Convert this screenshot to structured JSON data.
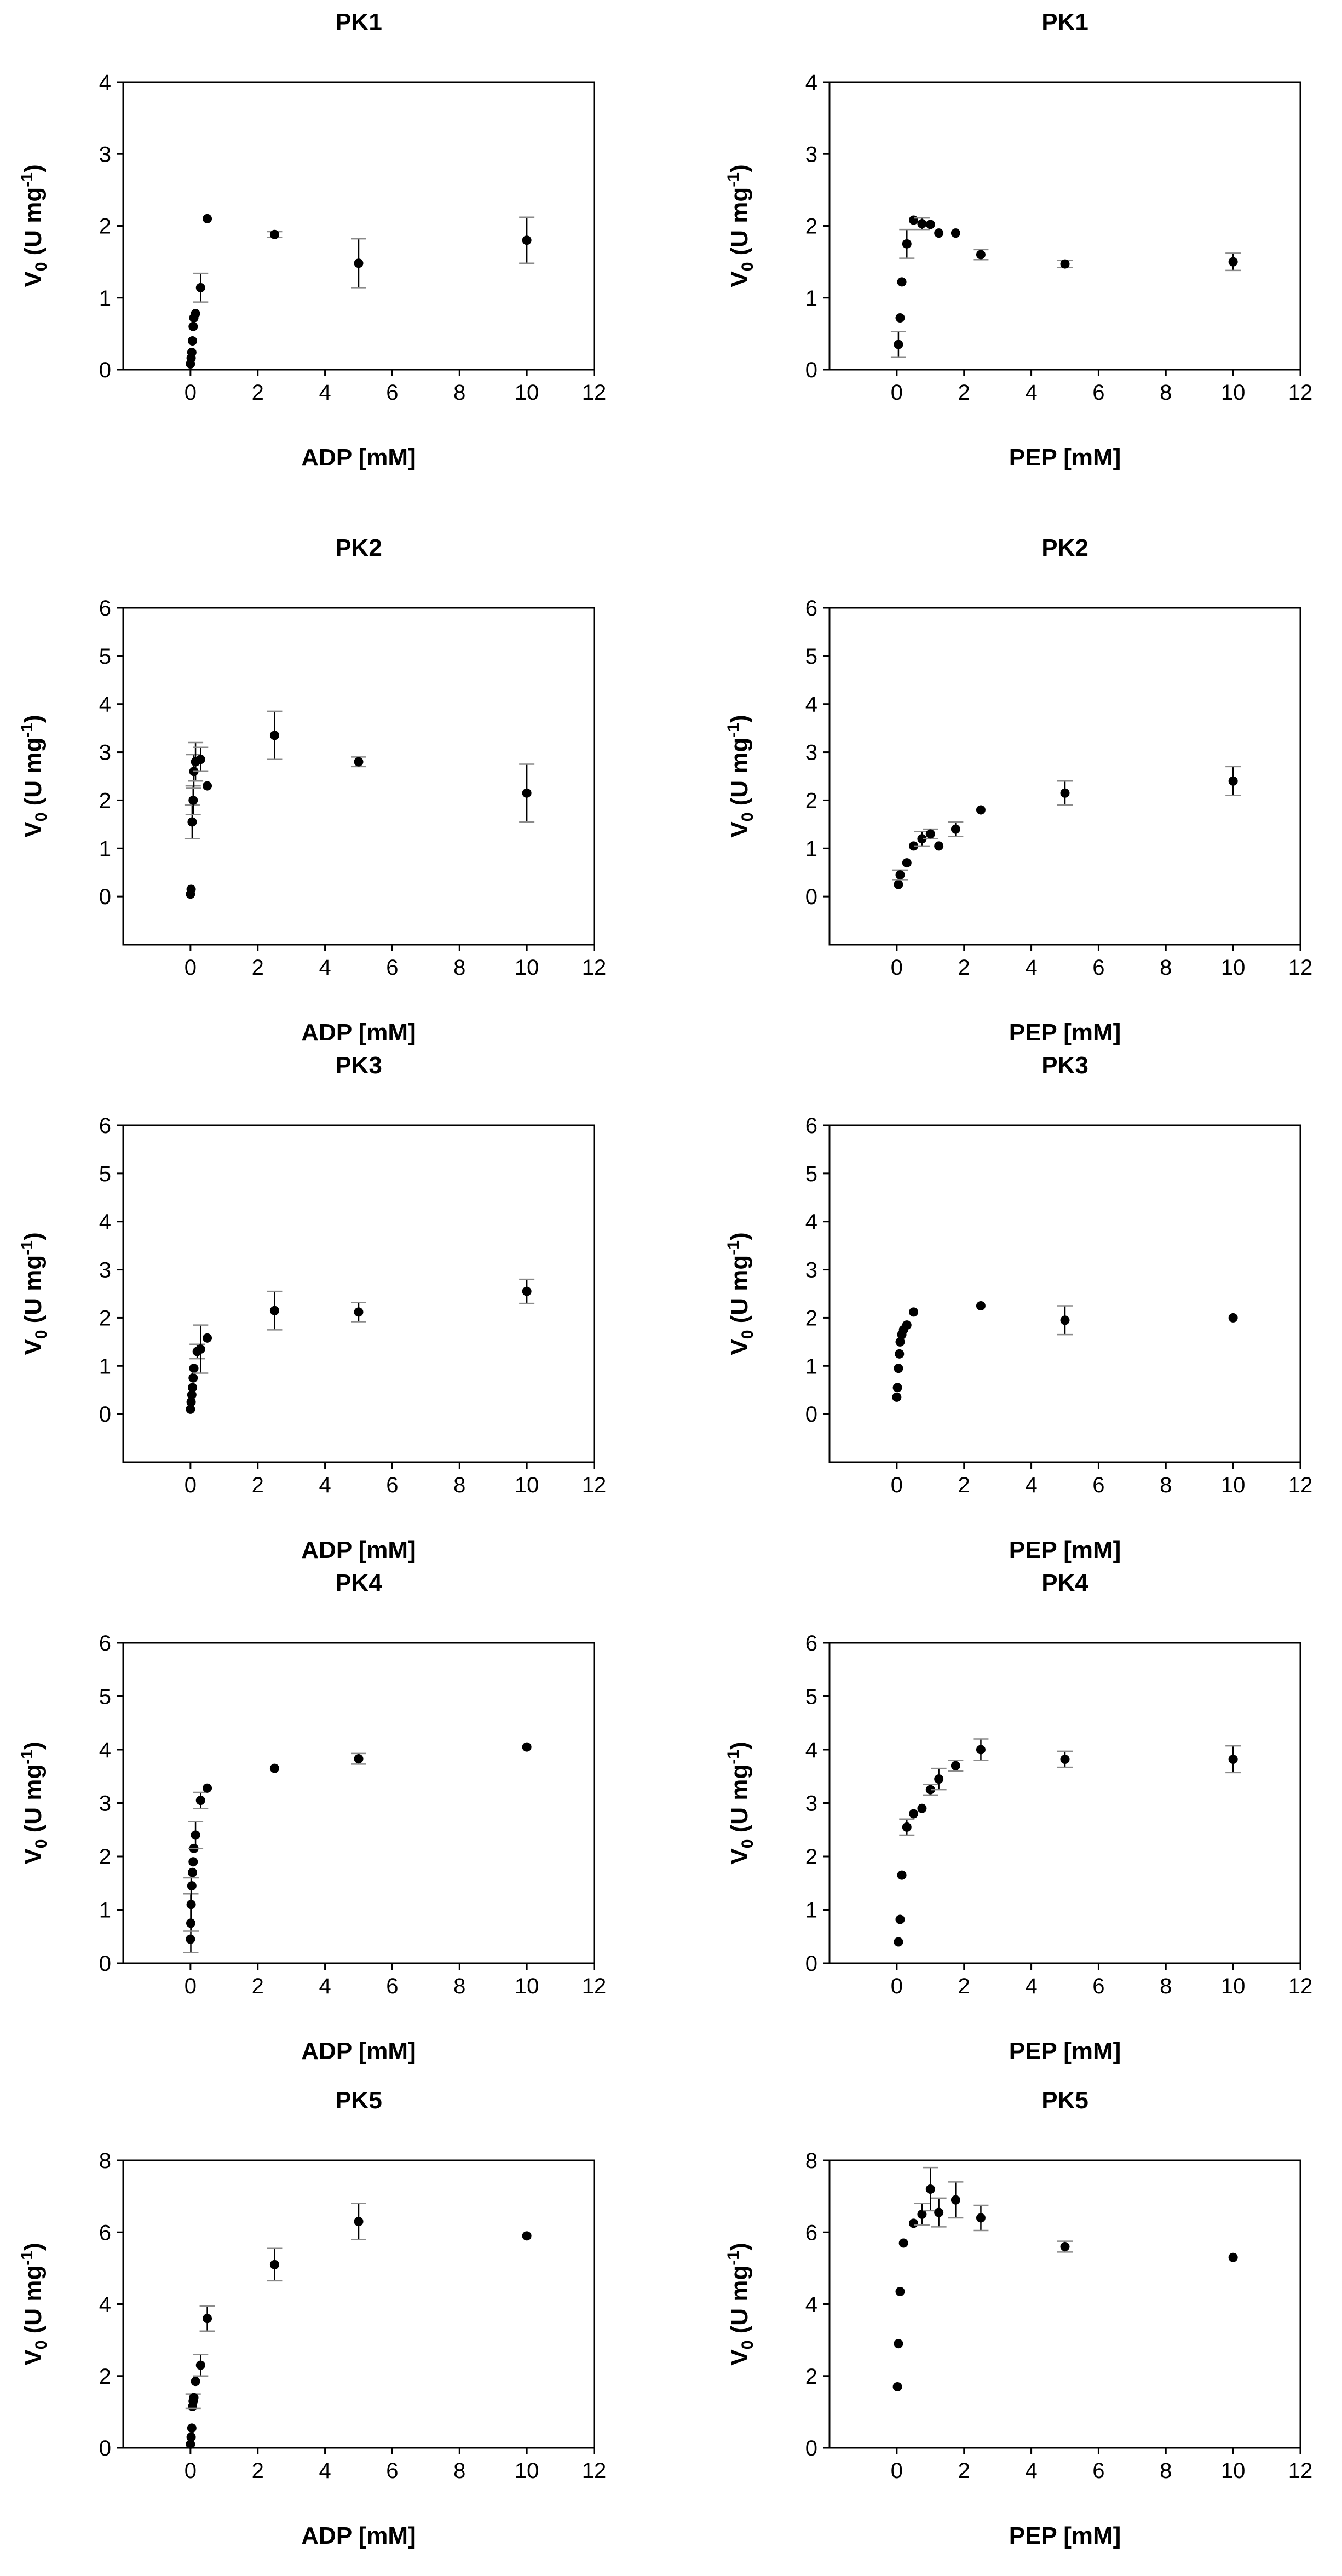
{
  "chart_data": [
    {
      "type": "scatter",
      "title": "PK1",
      "xlabel": "ADP [mM]",
      "ylabel": "V0 (U mg-1)",
      "xlim": [
        -2,
        12
      ],
      "ylim": [
        0,
        4
      ],
      "xticks": [
        0,
        2,
        4,
        6,
        8,
        10,
        12
      ],
      "yticks": [
        0,
        1,
        2,
        3,
        4
      ],
      "grid": false,
      "legend": "none",
      "points": [
        {
          "x": 0,
          "y": 0.08
        },
        {
          "x": 0.02,
          "y": 0.16
        },
        {
          "x": 0.04,
          "y": 0.24
        },
        {
          "x": 0.06,
          "y": 0.4
        },
        {
          "x": 0.08,
          "y": 0.6
        },
        {
          "x": 0.1,
          "y": 0.72
        },
        {
          "x": 0.15,
          "y": 0.78
        },
        {
          "x": 0.3,
          "y": 1.14,
          "err": 0.2
        },
        {
          "x": 0.5,
          "y": 2.1
        },
        {
          "x": 2.5,
          "y": 1.88,
          "err": 0.04
        },
        {
          "x": 5,
          "y": 1.48,
          "err": 0.34
        },
        {
          "x": 10,
          "y": 1.8,
          "err": 0.32
        }
      ]
    },
    {
      "type": "scatter",
      "title": "PK1",
      "xlabel": "PEP [mM]",
      "ylabel": "V0 (U mg-1)",
      "xlim": [
        -2,
        12
      ],
      "ylim": [
        0,
        4
      ],
      "xticks": [
        0,
        2,
        4,
        6,
        8,
        10,
        12
      ],
      "yticks": [
        0,
        1,
        2,
        3,
        4
      ],
      "grid": false,
      "legend": "none",
      "points": [
        {
          "x": 0.05,
          "y": 0.35,
          "err": 0.18
        },
        {
          "x": 0.1,
          "y": 0.72
        },
        {
          "x": 0.15,
          "y": 1.22
        },
        {
          "x": 0.3,
          "y": 1.75,
          "err": 0.2
        },
        {
          "x": 0.5,
          "y": 2.08
        },
        {
          "x": 0.75,
          "y": 2.03,
          "err": 0.08
        },
        {
          "x": 1,
          "y": 2.02
        },
        {
          "x": 1.25,
          "y": 1.9
        },
        {
          "x": 1.75,
          "y": 1.9
        },
        {
          "x": 2.5,
          "y": 1.6,
          "err": 0.07
        },
        {
          "x": 5,
          "y": 1.47,
          "err": 0.05
        },
        {
          "x": 10,
          "y": 1.5,
          "err": 0.12
        }
      ]
    },
    {
      "type": "scatter",
      "title": "PK2",
      "xlabel": "ADP [mM]",
      "ylabel": "V0 (U mg-1)",
      "xlim": [
        -2,
        12
      ],
      "ylim": [
        -1,
        6
      ],
      "xticks": [
        0,
        2,
        4,
        6,
        8,
        10,
        12
      ],
      "yticks": [
        0,
        1,
        2,
        3,
        4,
        5,
        6
      ],
      "grid": false,
      "legend": "none",
      "points": [
        {
          "x": 0,
          "y": 0.05
        },
        {
          "x": 0.02,
          "y": 0.15
        },
        {
          "x": 0.05,
          "y": 1.55,
          "err": 0.35
        },
        {
          "x": 0.08,
          "y": 2.0,
          "err": 0.3
        },
        {
          "x": 0.1,
          "y": 2.6,
          "err": 0.35
        },
        {
          "x": 0.15,
          "y": 2.8,
          "err": 0.4
        },
        {
          "x": 0.3,
          "y": 2.85,
          "err": 0.25
        },
        {
          "x": 0.5,
          "y": 2.3
        },
        {
          "x": 2.5,
          "y": 3.35,
          "err": 0.5
        },
        {
          "x": 5,
          "y": 2.8,
          "err": 0.1
        },
        {
          "x": 10,
          "y": 2.15,
          "err": 0.6
        }
      ]
    },
    {
      "type": "scatter",
      "title": "PK2",
      "xlabel": "PEP [mM]",
      "ylabel": "V0 (U mg-1)",
      "xlim": [
        -2,
        12
      ],
      "ylim": [
        -1,
        6
      ],
      "xticks": [
        0,
        2,
        4,
        6,
        8,
        10,
        12
      ],
      "yticks": [
        0,
        1,
        2,
        3,
        4,
        5,
        6
      ],
      "grid": false,
      "legend": "none",
      "points": [
        {
          "x": 0.05,
          "y": 0.25
        },
        {
          "x": 0.1,
          "y": 0.45,
          "err": 0.1
        },
        {
          "x": 0.3,
          "y": 0.7
        },
        {
          "x": 0.5,
          "y": 1.05
        },
        {
          "x": 0.75,
          "y": 1.2,
          "err": 0.15
        },
        {
          "x": 1,
          "y": 1.3,
          "err": 0.1
        },
        {
          "x": 1.25,
          "y": 1.05
        },
        {
          "x": 1.75,
          "y": 1.4,
          "err": 0.15
        },
        {
          "x": 2.5,
          "y": 1.8
        },
        {
          "x": 5,
          "y": 2.15,
          "err": 0.25
        },
        {
          "x": 10,
          "y": 2.4,
          "err": 0.3
        }
      ]
    },
    {
      "type": "scatter",
      "title": "PK3",
      "xlabel": "ADP [mM]",
      "ylabel": "V0 (U mg-1)",
      "xlim": [
        -2,
        12
      ],
      "ylim": [
        -1,
        6
      ],
      "xticks": [
        0,
        2,
        4,
        6,
        8,
        10,
        12
      ],
      "yticks": [
        0,
        1,
        2,
        3,
        4,
        5,
        6
      ],
      "grid": false,
      "legend": "none",
      "points": [
        {
          "x": 0,
          "y": 0.1
        },
        {
          "x": 0.02,
          "y": 0.25
        },
        {
          "x": 0.04,
          "y": 0.4
        },
        {
          "x": 0.06,
          "y": 0.55
        },
        {
          "x": 0.08,
          "y": 0.75
        },
        {
          "x": 0.1,
          "y": 0.95
        },
        {
          "x": 0.2,
          "y": 1.3,
          "err": 0.15
        },
        {
          "x": 0.3,
          "y": 1.35,
          "err": 0.5
        },
        {
          "x": 0.5,
          "y": 1.58
        },
        {
          "x": 2.5,
          "y": 2.15,
          "err": 0.4
        },
        {
          "x": 5,
          "y": 2.12,
          "err": 0.2
        },
        {
          "x": 10,
          "y": 2.55,
          "err": 0.25
        }
      ]
    },
    {
      "type": "scatter",
      "title": "PK3",
      "xlabel": "PEP [mM]",
      "ylabel": "V0 (U mg-1)",
      "xlim": [
        -2,
        12
      ],
      "ylim": [
        -1,
        6
      ],
      "xticks": [
        0,
        2,
        4,
        6,
        8,
        10,
        12
      ],
      "yticks": [
        0,
        1,
        2,
        3,
        4,
        5,
        6
      ],
      "grid": false,
      "legend": "none",
      "points": [
        {
          "x": 0,
          "y": 0.35
        },
        {
          "x": 0.02,
          "y": 0.55
        },
        {
          "x": 0.05,
          "y": 0.95
        },
        {
          "x": 0.08,
          "y": 1.25
        },
        {
          "x": 0.1,
          "y": 1.5
        },
        {
          "x": 0.15,
          "y": 1.65
        },
        {
          "x": 0.2,
          "y": 1.75
        },
        {
          "x": 0.3,
          "y": 1.85
        },
        {
          "x": 0.5,
          "y": 2.12
        },
        {
          "x": 2.5,
          "y": 2.25
        },
        {
          "x": 5,
          "y": 1.95,
          "err": 0.3
        },
        {
          "x": 10,
          "y": 2.0
        }
      ]
    },
    {
      "type": "scatter",
      "title": "PK4",
      "xlabel": "ADP [mM]",
      "ylabel": "V0 (U mg-1)",
      "xlim": [
        -2,
        12
      ],
      "ylim": [
        0,
        6
      ],
      "xticks": [
        0,
        2,
        4,
        6,
        8,
        10,
        12
      ],
      "yticks": [
        0,
        1,
        2,
        3,
        4,
        5,
        6
      ],
      "grid": false,
      "legend": "none",
      "points": [
        {
          "x": 0,
          "y": 0.45
        },
        {
          "x": 0.01,
          "y": 0.75,
          "err": 0.55
        },
        {
          "x": 0.02,
          "y": 1.1,
          "err": 0.5
        },
        {
          "x": 0.04,
          "y": 1.45
        },
        {
          "x": 0.06,
          "y": 1.7
        },
        {
          "x": 0.08,
          "y": 1.9
        },
        {
          "x": 0.1,
          "y": 2.15
        },
        {
          "x": 0.15,
          "y": 2.4,
          "err": 0.25
        },
        {
          "x": 0.3,
          "y": 3.05,
          "err": 0.15
        },
        {
          "x": 0.5,
          "y": 3.28
        },
        {
          "x": 2.5,
          "y": 3.65
        },
        {
          "x": 5,
          "y": 3.83,
          "err": 0.1
        },
        {
          "x": 10,
          "y": 4.05
        }
      ]
    },
    {
      "type": "scatter",
      "title": "PK4",
      "xlabel": "PEP [mM]",
      "ylabel": "V0 (U mg-1)",
      "xlim": [
        -2,
        12
      ],
      "ylim": [
        0,
        6
      ],
      "xticks": [
        0,
        2,
        4,
        6,
        8,
        10,
        12
      ],
      "yticks": [
        0,
        1,
        2,
        3,
        4,
        5,
        6
      ],
      "grid": false,
      "legend": "none",
      "points": [
        {
          "x": 0.05,
          "y": 0.4
        },
        {
          "x": 0.1,
          "y": 0.82
        },
        {
          "x": 0.15,
          "y": 1.65
        },
        {
          "x": 0.3,
          "y": 2.55,
          "err": 0.15
        },
        {
          "x": 0.5,
          "y": 2.8
        },
        {
          "x": 0.75,
          "y": 2.9
        },
        {
          "x": 1,
          "y": 3.25,
          "err": 0.1
        },
        {
          "x": 1.25,
          "y": 3.45,
          "err": 0.2
        },
        {
          "x": 1.75,
          "y": 3.7,
          "err": 0.1
        },
        {
          "x": 2.5,
          "y": 4.0,
          "err": 0.2
        },
        {
          "x": 5,
          "y": 3.82,
          "err": 0.15
        },
        {
          "x": 10,
          "y": 3.82,
          "err": 0.25
        }
      ]
    },
    {
      "type": "scatter",
      "title": "PK5",
      "xlabel": "ADP [mM]",
      "ylabel": "V0 (U mg-1)",
      "xlim": [
        -2,
        12
      ],
      "ylim": [
        0,
        8
      ],
      "xticks": [
        0,
        2,
        4,
        6,
        8,
        10,
        12
      ],
      "yticks": [
        0,
        2,
        4,
        6,
        8
      ],
      "grid": false,
      "legend": "none",
      "points": [
        {
          "x": 0,
          "y": 0.1
        },
        {
          "x": 0.02,
          "y": 0.3
        },
        {
          "x": 0.04,
          "y": 0.55
        },
        {
          "x": 0.06,
          "y": 1.15
        },
        {
          "x": 0.08,
          "y": 1.3,
          "err": 0.2
        },
        {
          "x": 0.1,
          "y": 1.4
        },
        {
          "x": 0.15,
          "y": 1.85
        },
        {
          "x": 0.3,
          "y": 2.3,
          "err": 0.3
        },
        {
          "x": 0.5,
          "y": 3.6,
          "err": 0.35
        },
        {
          "x": 2.5,
          "y": 5.1,
          "err": 0.45
        },
        {
          "x": 5,
          "y": 6.3,
          "err": 0.5
        },
        {
          "x": 10,
          "y": 5.9
        }
      ]
    },
    {
      "type": "scatter",
      "title": "PK5",
      "xlabel": "PEP [mM]",
      "ylabel": "V0 (U mg-1)",
      "xlim": [
        -2,
        12
      ],
      "ylim": [
        0,
        8
      ],
      "xticks": [
        0,
        2,
        4,
        6,
        8,
        10,
        12
      ],
      "yticks": [
        0,
        2,
        4,
        6,
        8
      ],
      "grid": false,
      "legend": "none",
      "points": [
        {
          "x": 0.02,
          "y": 1.7
        },
        {
          "x": 0.05,
          "y": 2.9
        },
        {
          "x": 0.1,
          "y": 4.35
        },
        {
          "x": 0.2,
          "y": 5.7
        },
        {
          "x": 0.5,
          "y": 6.25
        },
        {
          "x": 0.75,
          "y": 6.5,
          "err": 0.3
        },
        {
          "x": 1,
          "y": 7.2,
          "err": 0.6
        },
        {
          "x": 1.25,
          "y": 6.55,
          "err": 0.4
        },
        {
          "x": 1.75,
          "y": 6.9,
          "err": 0.5
        },
        {
          "x": 2.5,
          "y": 6.4,
          "err": 0.35
        },
        {
          "x": 5,
          "y": 5.6,
          "err": 0.15
        },
        {
          "x": 10,
          "y": 5.3
        }
      ]
    }
  ]
}
